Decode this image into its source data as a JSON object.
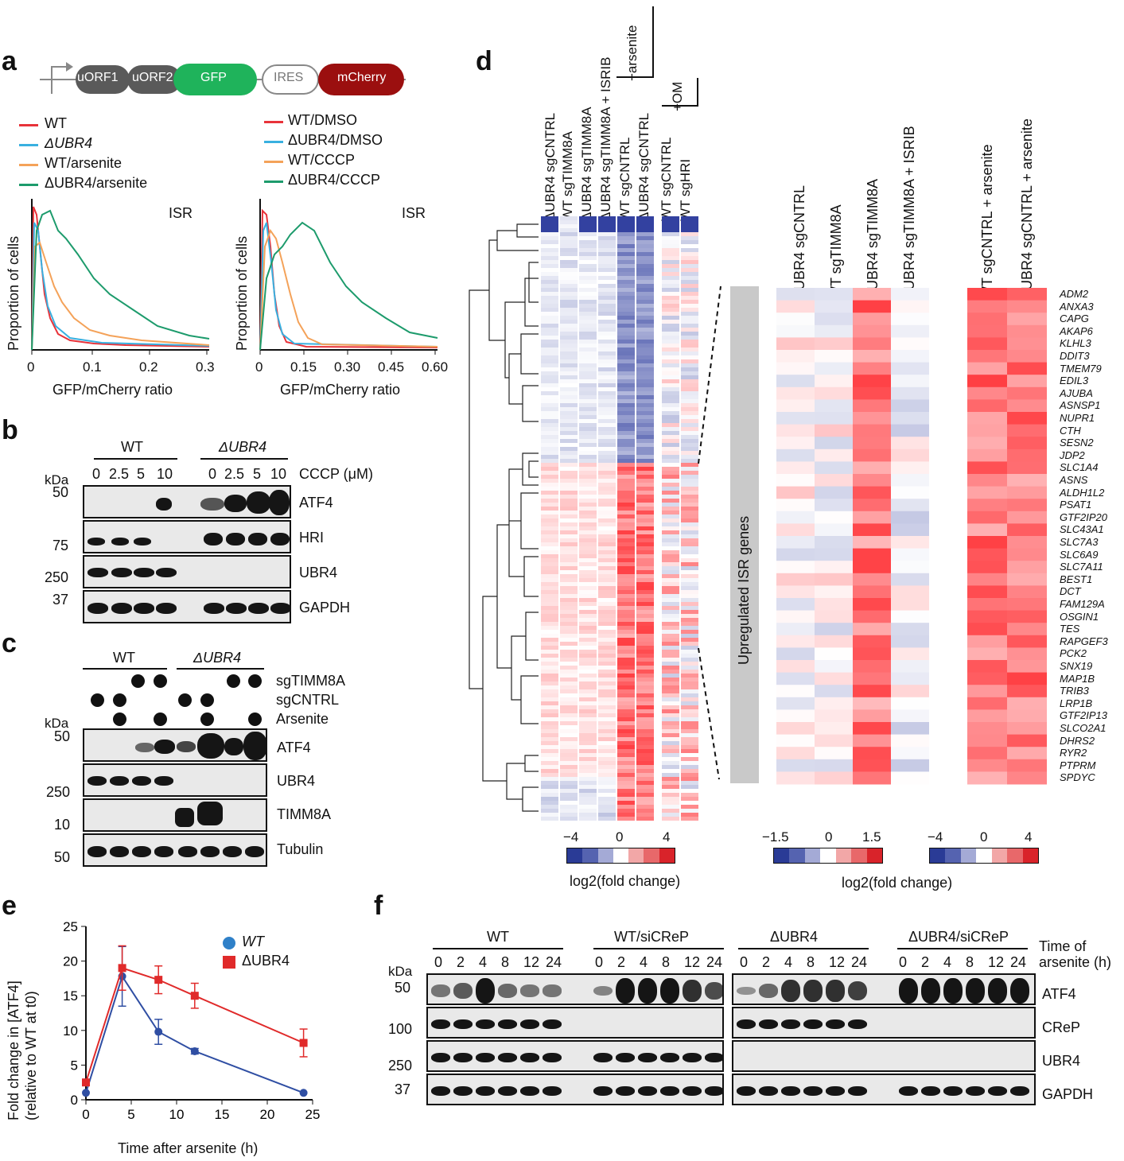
{
  "panels": {
    "a": "a",
    "b": "b",
    "c": "c",
    "d": "d",
    "e": "e",
    "f": "f"
  },
  "panel_a": {
    "construct": [
      "uORF1",
      "uORF2",
      "GFP",
      "IRES",
      "mCherry"
    ],
    "construct_colors": [
      "#5a5a5a",
      "#5a5a5a",
      "#1fb35b",
      "#ffffff",
      "#9b0f0f"
    ],
    "legend_left": [
      "WT",
      "ΔUBR4",
      "WT/arsenite",
      "ΔUBR4/arsenite"
    ],
    "legend_right": [
      "WT/DMSO",
      "ΔUBR4/DMSO",
      "WT/CCCP",
      "ΔUBR4/CCCP"
    ],
    "legend_colors": [
      "#e8333a",
      "#39b0e0",
      "#f4a259",
      "#1d9b6c"
    ],
    "plot_title": "ISR",
    "ylabel": "Proportion of cells",
    "xlabel": "GFP/mCherry ratio",
    "ticks_left": [
      "0",
      "0.1",
      "0.2",
      "0.3"
    ],
    "ticks_right": [
      "0",
      "0.15",
      "0.30",
      "0.45",
      "0.60"
    ]
  },
  "panel_b": {
    "wt": "WT",
    "ko": "ΔUBR4",
    "lanes": [
      "0",
      "2.5",
      "5",
      "10",
      "0",
      "2.5",
      "5",
      "10"
    ],
    "treatment": "CCCP (μM)",
    "kda": "kDa",
    "markers": [
      "50",
      "75",
      "250",
      "37"
    ],
    "proteins": [
      "ATF4",
      "HRI",
      "UBR4",
      "GAPDH"
    ]
  },
  "panel_c": {
    "wt": "WT",
    "ko": "ΔUBR4",
    "conditions": [
      "sgTIMM8A",
      "sgCNTRL",
      "Arsenite"
    ],
    "kda": "kDa",
    "markers": [
      "50",
      "250",
      "10",
      "50"
    ],
    "proteins": [
      "ATF4",
      "UBR4",
      "TIMM8A",
      "Tubulin"
    ]
  },
  "panel_d": {
    "col_labels_left": [
      "ΔUBR4 sgCNTRL",
      "WT sgTIMM8A",
      "ΔUBR4 sgTIMM8A",
      "ΔUBR4 sgTIMM8A + ISRIB",
      "WT sgCNTRL",
      "ΔUBR4 sgCNTRL",
      "WT sgCNTRL",
      "WT sgHRI"
    ],
    "bracket_arsenite": "+arsenite",
    "bracket_om": "+OM",
    "col_labels_right": [
      "ΔUBR4 sgCNTRL",
      "WT sgTIMM8A",
      "ΔUBR4 sgTIMM8A",
      "ΔUBR4 sgTIMM8A + ISRIB",
      "WT sgCNTRL + arsenite",
      "ΔUBR4 sgCNTRL + arsenite"
    ],
    "side_label": "Upregulated ISR genes",
    "genes": [
      "ADM2",
      "ANXA3",
      "CAPG",
      "AKAP6",
      "KLHL3",
      "DDIT3",
      "TMEM79",
      "EDIL3",
      "AJUBA",
      "ASNSP1",
      "NUPR1",
      "CTH",
      "SESN2",
      "JDP2",
      "SLC1A4",
      "ASNS",
      "ALDH1L2",
      "PSAT1",
      "GTF2IP20",
      "SLC43A1",
      "SLC7A3",
      "SLC6A9",
      "SLC7A11",
      "BEST1",
      "DCT",
      "FAM129A",
      "OSGIN1",
      "TES",
      "RAPGEF3",
      "PCK2",
      "SNX19",
      "MAP1B",
      "TRIB3",
      "LRP1B",
      "GTF2IP13",
      "SLCO2A1",
      "DHRS2",
      "RYR2",
      "PTPRM",
      "SPDYC"
    ],
    "cbar1_ticks": [
      "−4",
      "0",
      "4"
    ],
    "cbar2_ticks": [
      "−1.5",
      "0",
      "1.5"
    ],
    "cbar3_ticks": [
      "−4",
      "0",
      "4"
    ],
    "cbar_label": "log2(fold change)"
  },
  "panel_e": {
    "ylabel_1": "Fold change in [ATF4]",
    "ylabel_2": "(relative to WT at t0)",
    "xlabel": "Time after arsenite (h)",
    "legend": [
      "WT",
      "ΔUBR4"
    ],
    "colors": [
      "#2f4ea3",
      "#e02a2a"
    ]
  },
  "panel_f": {
    "groups": [
      "WT",
      "WT/siCReP",
      "ΔUBR4",
      "ΔUBR4/siCReP"
    ],
    "lanes": [
      "0",
      "2",
      "4",
      "8",
      "12",
      "24"
    ],
    "time_label_1": "Time of",
    "time_label_2": "arsenite (h)",
    "kda": "kDa",
    "markers": [
      "50",
      "100",
      "250",
      "37"
    ],
    "proteins": [
      "ATF4",
      "CReP",
      "UBR4",
      "GAPDH"
    ]
  },
  "chart_data": {
    "type": "line",
    "title": "",
    "xlabel": "Time after arsenite (h)",
    "ylabel": "Fold change in [ATF4] (relative to WT at t0)",
    "xlim": [
      0,
      25
    ],
    "ylim": [
      0,
      25
    ],
    "xticks": [
      "0",
      "5",
      "10",
      "15",
      "20",
      "25"
    ],
    "yticks": [
      "0",
      "5",
      "10",
      "15",
      "20",
      "25"
    ],
    "x": [
      0,
      4,
      8,
      12,
      24
    ],
    "series": [
      {
        "name": "WT",
        "values": [
          1.0,
          17.8,
          9.8,
          7.0,
          1.0
        ],
        "errors": [
          0,
          4.3,
          1.8,
          0.4,
          0
        ]
      },
      {
        "name": "ΔUBR4",
        "values": [
          2.5,
          19.0,
          17.3,
          15.0,
          8.2
        ],
        "errors": [
          0,
          3.2,
          2.0,
          1.8,
          2.0
        ]
      }
    ]
  }
}
